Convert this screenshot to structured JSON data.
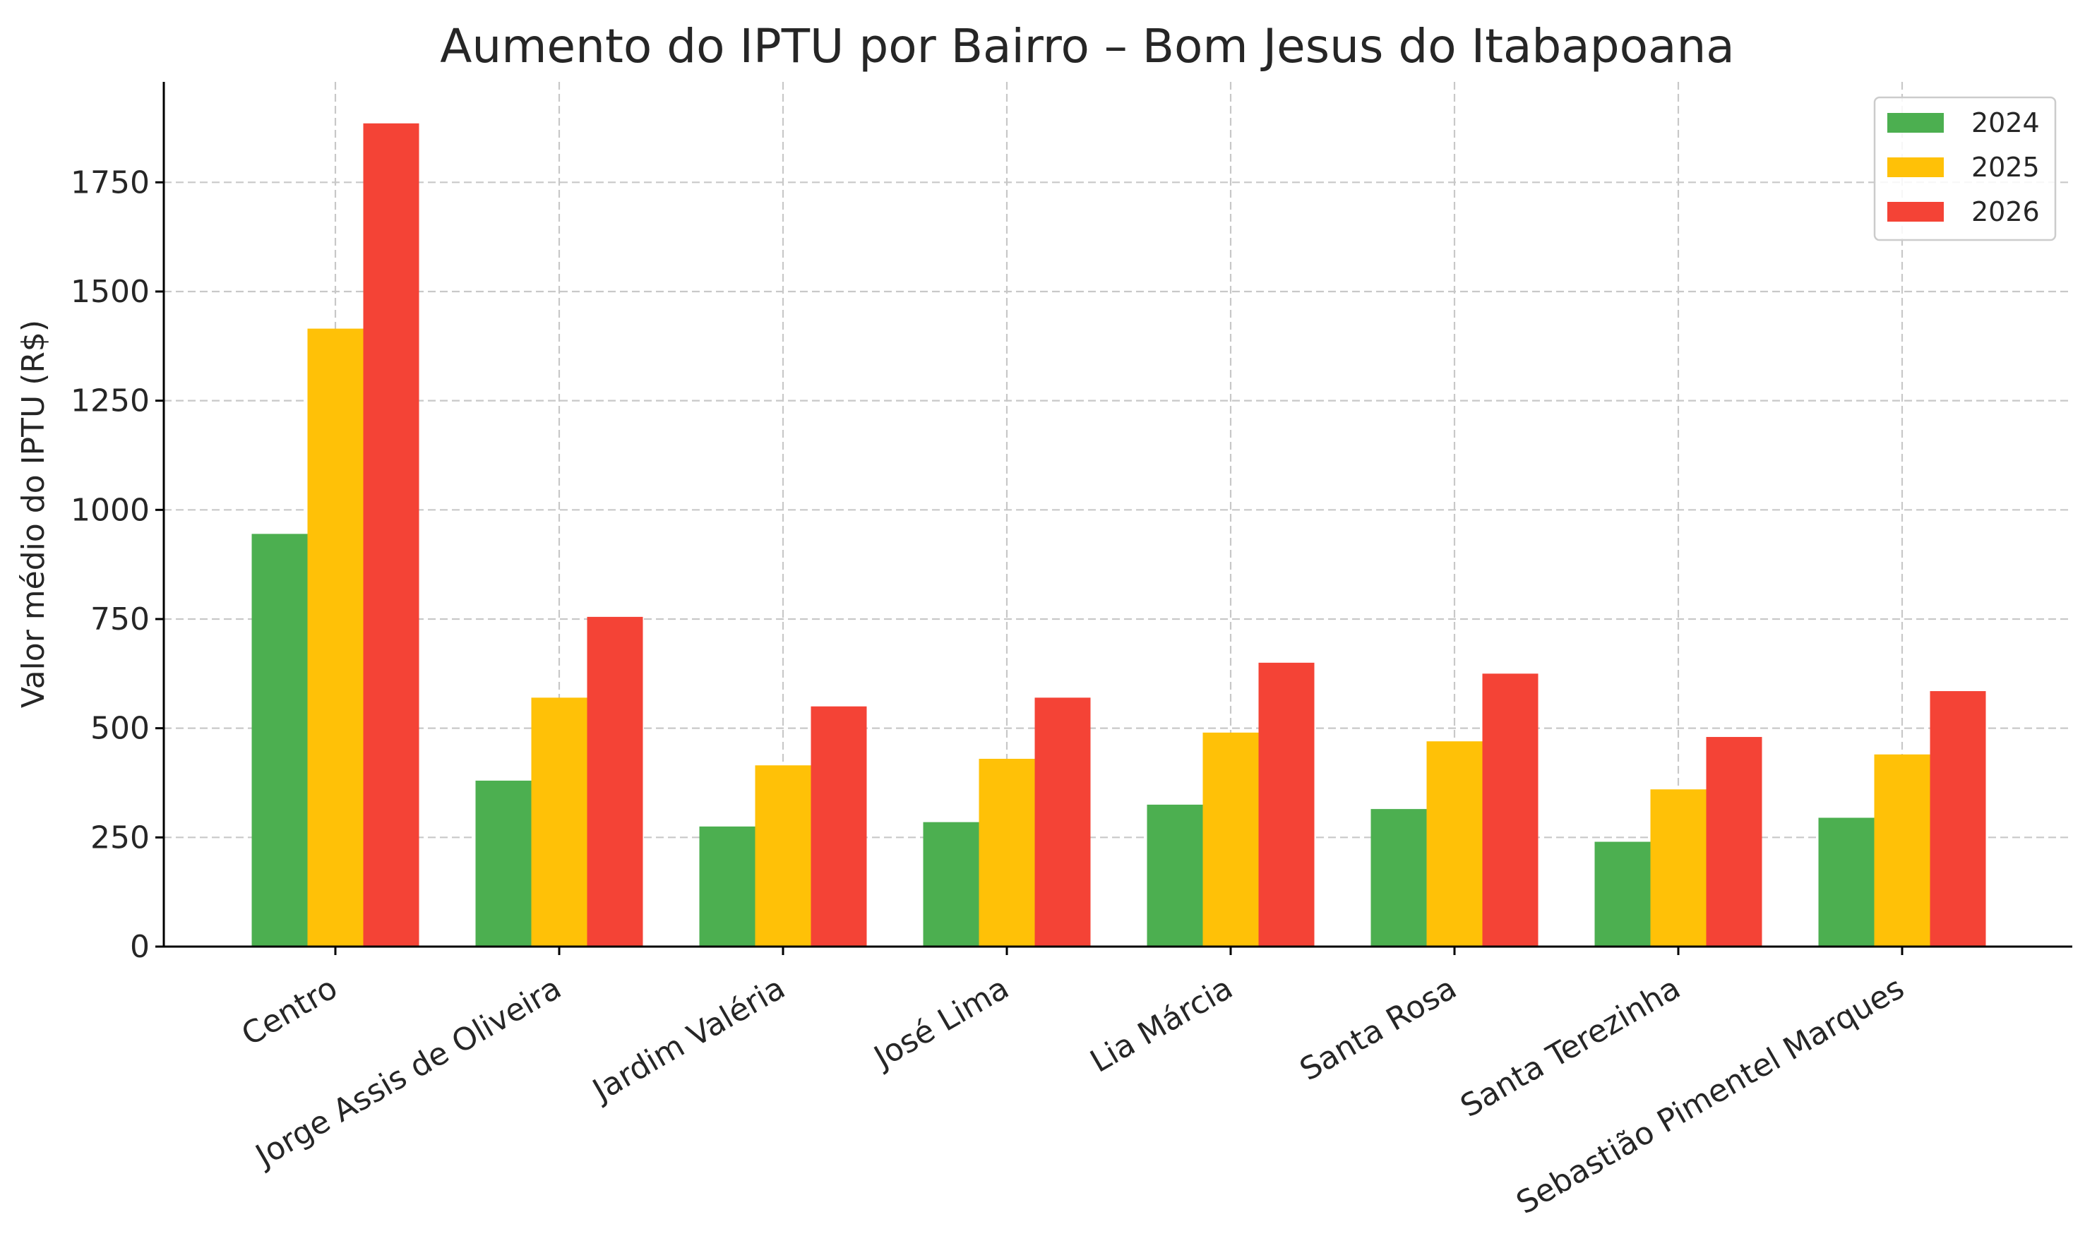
{
  "chart_data": {
    "type": "bar",
    "title": "Aumento do IPTU por Bairro – Bom Jesus do Itabapoana",
    "xlabel": "",
    "ylabel": "Valor médio do IPTU (R$)",
    "categories": [
      "Centro",
      "Jorge Assis de Oliveira",
      "Jardim Valéria",
      "José Lima",
      "Lia Márcia",
      "Santa Rosa",
      "Santa Terezinha",
      "Sebastião Pimentel Marques"
    ],
    "series": [
      {
        "name": "2024",
        "color": "#4caf50",
        "values": [
          945,
          380,
          275,
          285,
          325,
          315,
          240,
          295
        ]
      },
      {
        "name": "2025",
        "color": "#ffc107",
        "values": [
          1415,
          570,
          415,
          430,
          490,
          470,
          360,
          440
        ]
      },
      {
        "name": "2026",
        "color": "#f44336",
        "values": [
          1885,
          755,
          550,
          570,
          650,
          625,
          480,
          585
        ]
      }
    ],
    "yticks": [
      0,
      250,
      500,
      750,
      1000,
      1250,
      1500,
      1750
    ],
    "ylim": [
      0,
      1980
    ],
    "grid": true,
    "legend_position": "top-right"
  }
}
